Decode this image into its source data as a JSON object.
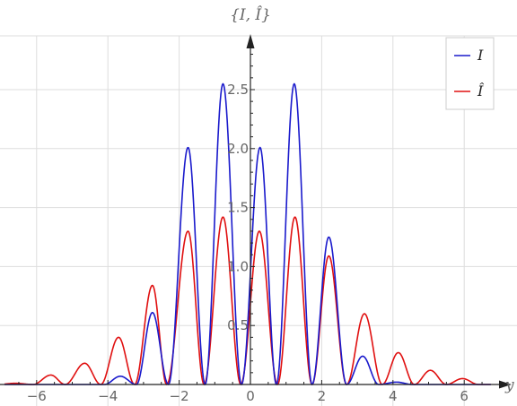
{
  "chart_data": {
    "type": "line",
    "title": "",
    "xlabel": "y",
    "ylabel": "{I, Î}",
    "xlim": [
      -6.9,
      6.75
    ],
    "ylim": [
      0,
      2.9
    ],
    "x_ticks": [
      -6,
      -4,
      -2,
      0,
      2,
      4,
      6
    ],
    "x_tick_labels": [
      "−6",
      "−4",
      "−2",
      "0",
      "2",
      "4",
      "6"
    ],
    "y_ticks": [
      0.5,
      1.0,
      1.5,
      2.0,
      2.5
    ],
    "y_tick_labels": [
      "0.5",
      "1.0",
      "1.5",
      "2.0",
      "2.5"
    ],
    "grid": true,
    "legend_position": "top-right",
    "series": [
      {
        "name": "I",
        "color": "#1a1acc",
        "zeros": [
          -4.1,
          -3.2,
          -2.3,
          -1.27,
          -0.25,
          0.73,
          1.73,
          2.7,
          3.6,
          4.55
        ],
        "peaks": [
          [
            -3.65,
            0.07
          ],
          [
            -2.75,
            0.61
          ],
          [
            -1.75,
            2.01
          ],
          [
            -0.77,
            2.55
          ],
          [
            0.27,
            2.01
          ],
          [
            1.23,
            2.55
          ],
          [
            2.2,
            1.25
          ],
          [
            3.15,
            0.24
          ],
          [
            4.1,
            0.02
          ]
        ]
      },
      {
        "name": "Î",
        "color": "#e01010",
        "zeros": [
          -6.1,
          -5.2,
          -4.2,
          -3.25,
          -2.35,
          -1.3,
          -0.27,
          0.76,
          1.73,
          2.7,
          3.7,
          4.6,
          5.5,
          6.4
        ],
        "peaks": [
          [
            -6.6,
            0.01
          ],
          [
            -5.6,
            0.08
          ],
          [
            -4.65,
            0.18
          ],
          [
            -3.7,
            0.4
          ],
          [
            -2.75,
            0.84
          ],
          [
            -1.75,
            1.3
          ],
          [
            -0.77,
            1.42
          ],
          [
            0.25,
            1.3
          ],
          [
            1.25,
            1.42
          ],
          [
            2.2,
            1.09
          ],
          [
            3.2,
            0.6
          ],
          [
            4.15,
            0.27
          ],
          [
            5.05,
            0.12
          ],
          [
            5.95,
            0.05
          ]
        ]
      }
    ]
  }
}
